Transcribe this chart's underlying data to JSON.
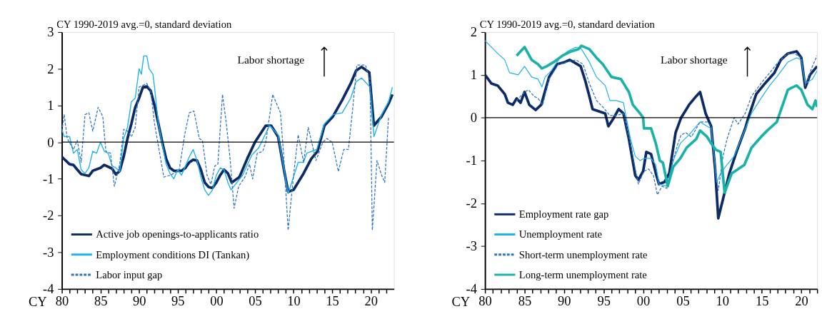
{
  "chart_data": [
    {
      "type": "line",
      "ylabel": "CY 1990-2019 avg.=0, standard deviation",
      "xlabel": "CY",
      "annotations": [
        "Labor shortage"
      ],
      "xlim": [
        1980,
        2023
      ],
      "ylim": [
        -4,
        3
      ],
      "yticks": [
        -4,
        -3,
        -2,
        -1,
        0,
        1,
        2,
        3
      ],
      "xticks": [
        {
          "value": 1980,
          "label": "80"
        },
        {
          "value": 1981,
          "label": null
        },
        {
          "value": 1982,
          "label": null
        },
        {
          "value": 1983,
          "label": null
        },
        {
          "value": 1984,
          "label": null
        },
        {
          "value": 1985,
          "label": "85"
        },
        {
          "value": 1986,
          "label": null
        },
        {
          "value": 1987,
          "label": null
        },
        {
          "value": 1988,
          "label": null
        },
        {
          "value": 1989,
          "label": null
        },
        {
          "value": 1990,
          "label": "90"
        },
        {
          "value": 1991,
          "label": null
        },
        {
          "value": 1992,
          "label": null
        },
        {
          "value": 1993,
          "label": null
        },
        {
          "value": 1994,
          "label": null
        },
        {
          "value": 1995,
          "label": "95"
        },
        {
          "value": 1996,
          "label": null
        },
        {
          "value": 1997,
          "label": null
        },
        {
          "value": 1998,
          "label": null
        },
        {
          "value": 1999,
          "label": null
        },
        {
          "value": 2000,
          "label": "00"
        },
        {
          "value": 2001,
          "label": null
        },
        {
          "value": 2002,
          "label": null
        },
        {
          "value": 2003,
          "label": null
        },
        {
          "value": 2004,
          "label": null
        },
        {
          "value": 2005,
          "label": "05"
        },
        {
          "value": 2006,
          "label": null
        },
        {
          "value": 2007,
          "label": null
        },
        {
          "value": 2008,
          "label": null
        },
        {
          "value": 2009,
          "label": null
        },
        {
          "value": 2010,
          "label": "10"
        },
        {
          "value": 2011,
          "label": null
        },
        {
          "value": 2012,
          "label": null
        },
        {
          "value": 2013,
          "label": null
        },
        {
          "value": 2014,
          "label": null
        },
        {
          "value": 2015,
          "label": "15"
        },
        {
          "value": 2016,
          "label": null
        },
        {
          "value": 2017,
          "label": null
        },
        {
          "value": 2018,
          "label": null
        },
        {
          "value": 2019,
          "label": null
        },
        {
          "value": 2020,
          "label": "20"
        },
        {
          "value": 2021,
          "label": null
        },
        {
          "value": 2022,
          "label": null
        }
      ],
      "grid": false,
      "legend": "bottom left",
      "marker": "none",
      "ref_lines": [
        {
          "axis": "y",
          "value": 0,
          "label": null,
          "color": "#000000"
        }
      ],
      "series": [
        {
          "name": "Active job openings-to-applicants ratio",
          "color": "#0b2a66",
          "line_style": "solid",
          "x": [
            1980,
            1981,
            1981.5,
            1982,
            1982.5,
            1983.5,
            1984,
            1985,
            1985.5,
            1986.5,
            1987,
            1987.5,
            1988,
            1988.5,
            1989,
            1989.5,
            1990,
            1990.5,
            1991,
            1991.5,
            1992,
            1992.5,
            1993,
            1993.5,
            1994,
            1994.5,
            1995.5,
            1996,
            1996.5,
            1997,
            1997.5,
            1998,
            1998.5,
            1999,
            1999.5,
            2000,
            2000.5,
            2001,
            2001.5,
            2002,
            2003,
            2004,
            2005,
            2006.4,
            2007.1,
            2008,
            2008.8,
            2009.3,
            2010,
            2011.3,
            2012.3,
            2013.1,
            2014,
            2015.1,
            2016.3,
            2017.4,
            2018.1,
            2018.8,
            2019.8,
            2020.4,
            2021.4,
            2022.3,
            2022.8
          ],
          "values": [
            -0.4,
            -0.6,
            -0.62,
            -0.75,
            -0.87,
            -0.92,
            -0.78,
            -0.7,
            -0.62,
            -0.72,
            -0.88,
            -0.78,
            -0.4,
            0.1,
            0.5,
            0.95,
            1.2,
            1.5,
            1.52,
            1.4,
            1.0,
            0.5,
            0.0,
            -0.45,
            -0.7,
            -0.78,
            -0.78,
            -0.7,
            -0.55,
            -0.48,
            -0.5,
            -0.75,
            -1.1,
            -1.22,
            -1.25,
            -1.1,
            -0.9,
            -0.75,
            -0.85,
            -1.1,
            -0.95,
            -0.45,
            0.0,
            0.45,
            0.45,
            0.15,
            -0.8,
            -1.35,
            -1.3,
            -0.85,
            -0.45,
            -0.25,
            0.45,
            0.7,
            1.15,
            1.6,
            1.95,
            2.05,
            1.9,
            0.45,
            0.7,
            1.05,
            1.3
          ]
        },
        {
          "name": "Employment conditions DI (Tankan)",
          "color": "#1ab2ef",
          "line_style": "solid",
          "x": [
            1980,
            1980.3,
            1981,
            1981.5,
            1982,
            1982.5,
            1983,
            1983.5,
            1984,
            1984.5,
            1985,
            1985.5,
            1986,
            1986.5,
            1987,
            1987.5,
            1988,
            1988.5,
            1989,
            1989.5,
            1990,
            1990.3,
            1990.6,
            1991,
            1991.3,
            1991.8,
            1992,
            1992.5,
            1993,
            1993.5,
            1994,
            1994.5,
            1995,
            1995.5,
            1996,
            1996.5,
            1997,
            1997.5,
            1998,
            1998.5,
            1999,
            1999.5,
            2000,
            2000.5,
            2001,
            2001.5,
            2001.9,
            2003.4,
            2004.6,
            2005.5,
            2006.9,
            2008,
            2009.3,
            2010.6,
            2011.3,
            2011.7,
            2013,
            2014,
            2015.1,
            2016.3,
            2017.4,
            2018.1,
            2018.8,
            2019.9,
            2020.4,
            2021.4,
            2022.3,
            2022.8
          ],
          "values": [
            0.35,
            0.15,
            0.15,
            -0.3,
            -0.2,
            -0.75,
            -0.85,
            -0.7,
            -0.25,
            -0.3,
            0.0,
            -0.25,
            -0.3,
            -0.65,
            -0.7,
            -0.8,
            0.1,
            0.4,
            1.1,
            1.2,
            2.0,
            1.85,
            2.35,
            2.35,
            2.0,
            1.85,
            1.5,
            0.5,
            -0.05,
            -0.6,
            -0.85,
            -1.0,
            -0.75,
            -0.9,
            -0.65,
            -0.4,
            -0.2,
            -0.5,
            -0.95,
            -1.3,
            -1.45,
            -1.3,
            -0.9,
            -0.7,
            -0.75,
            -1.1,
            -1.3,
            -0.9,
            -0.35,
            -0.15,
            0.45,
            0.2,
            -1.4,
            -0.55,
            -0.55,
            -0.3,
            -0.2,
            0.5,
            0.75,
            0.8,
            1.2,
            1.65,
            1.75,
            1.5,
            0.15,
            0.75,
            1.1,
            1.5
          ]
        },
        {
          "name": "Labor input gap",
          "color": "#2f75c6",
          "line_style": "dashed",
          "x": [
            1980,
            1980.3,
            1980.7,
            1981.5,
            1982,
            1982.5,
            1983,
            1983.5,
            1984,
            1984.7,
            1985.3,
            1985.7,
            1986.3,
            1986.8,
            1987.5,
            1988,
            1988.5,
            1989,
            1989.5,
            1990,
            1990.5,
            1991,
            1991.5,
            1992,
            1992.5,
            1993.2,
            1994.1,
            1995.2,
            1995.9,
            1996.5,
            1997.1,
            1997.8,
            1998.2,
            1998.8,
            1999.3,
            1999.8,
            2000.2,
            2000.8,
            2001.3,
            2001.8,
            2002.3,
            2002.9,
            2003.7,
            2004.3,
            2004.7,
            2005.3,
            2006,
            2006.4,
            2007.3,
            2007.7,
            2008.3,
            2008.7,
            2009.3,
            2010,
            2010.6,
            2011.3,
            2011.9,
            2012.9,
            2013.8,
            2014.3,
            2015,
            2015.8,
            2016.5,
            2017.1,
            2017.6,
            2018.2,
            2019.3,
            2019.9,
            2020.2,
            2020.8,
            2021.4,
            2021.8,
            2022.3
          ],
          "values": [
            0.3,
            0.75,
            0.1,
            -0.2,
            0.05,
            -0.55,
            0.75,
            0.8,
            0.3,
            0.95,
            0.7,
            -0.25,
            -0.3,
            -1.2,
            -0.6,
            0.35,
            0.3,
            0.15,
            0.4,
            1.5,
            1.55,
            1.6,
            1.4,
            0.5,
            -0.1,
            -0.95,
            -0.9,
            -0.75,
            0.2,
            0.8,
            0.85,
            0.1,
            0.05,
            -0.9,
            -1.15,
            -0.65,
            -0.6,
            1.3,
            0.5,
            -0.5,
            -1.8,
            -1.2,
            -0.95,
            -0.6,
            -1.0,
            -0.3,
            -0.25,
            0.0,
            1.3,
            1.1,
            0.8,
            -0.3,
            -2.4,
            -0.9,
            0.2,
            -0.55,
            0.4,
            -0.5,
            0.0,
            0.1,
            0.0,
            -0.8,
            -0.2,
            -0.2,
            0.8,
            2.1,
            2.1,
            1.7,
            -2.4,
            -0.5,
            -0.9,
            -1.1,
            0.7
          ]
        }
      ]
    },
    {
      "type": "line",
      "ylabel": "CY 1990-2019 avg.=0, standard deviation",
      "xlabel": "CY",
      "annotations": [
        "Labor shortage"
      ],
      "xlim": [
        1980,
        2022
      ],
      "ylim": [
        -4,
        2
      ],
      "yticks": [
        -4,
        -3,
        -2,
        -1,
        0,
        1,
        2
      ],
      "xticks": [
        {
          "value": 1980,
          "label": "80"
        },
        {
          "value": 1981,
          "label": null
        },
        {
          "value": 1982,
          "label": null
        },
        {
          "value": 1983,
          "label": null
        },
        {
          "value": 1984,
          "label": null
        },
        {
          "value": 1985,
          "label": "85"
        },
        {
          "value": 1986,
          "label": null
        },
        {
          "value": 1987,
          "label": null
        },
        {
          "value": 1988,
          "label": null
        },
        {
          "value": 1989,
          "label": null
        },
        {
          "value": 1990,
          "label": "90"
        },
        {
          "value": 1991,
          "label": null
        },
        {
          "value": 1992,
          "label": null
        },
        {
          "value": 1993,
          "label": null
        },
        {
          "value": 1994,
          "label": null
        },
        {
          "value": 1995,
          "label": "95"
        },
        {
          "value": 1996,
          "label": null
        },
        {
          "value": 1997,
          "label": null
        },
        {
          "value": 1998,
          "label": null
        },
        {
          "value": 1999,
          "label": null
        },
        {
          "value": 2000,
          "label": "00"
        },
        {
          "value": 2001,
          "label": null
        },
        {
          "value": 2002,
          "label": null
        },
        {
          "value": 2003,
          "label": null
        },
        {
          "value": 2004,
          "label": null
        },
        {
          "value": 2005,
          "label": "05"
        },
        {
          "value": 2006,
          "label": null
        },
        {
          "value": 2007,
          "label": null
        },
        {
          "value": 2008,
          "label": null
        },
        {
          "value": 2009,
          "label": null
        },
        {
          "value": 2010,
          "label": "10"
        },
        {
          "value": 2011,
          "label": null
        },
        {
          "value": 2012,
          "label": null
        },
        {
          "value": 2013,
          "label": null
        },
        {
          "value": 2014,
          "label": null
        },
        {
          "value": 2015,
          "label": "15"
        },
        {
          "value": 2016,
          "label": null
        },
        {
          "value": 2017,
          "label": null
        },
        {
          "value": 2018,
          "label": null
        },
        {
          "value": 2019,
          "label": null
        },
        {
          "value": 2020,
          "label": "20"
        },
        {
          "value": 2021,
          "label": null
        },
        {
          "value": 2022,
          "label": null
        }
      ],
      "grid": false,
      "legend": "bottom left",
      "marker": "none",
      "ref_lines": [
        {
          "axis": "y",
          "value": 0,
          "label": null,
          "color": "#000000"
        }
      ],
      "series": [
        {
          "name": "Employment rate gap",
          "color": "#0b2a66",
          "line_style": "solid",
          "x": [
            1980,
            1980.8,
            1981.6,
            1982.5,
            1982.9,
            1983.5,
            1984,
            1984.5,
            1985,
            1985.6,
            1986.4,
            1987.1,
            1988.1,
            1989.1,
            1990.1,
            1990.7,
            1991.2,
            1992.1,
            1992.7,
            1993.2,
            1993.6,
            1994.4,
            1995.2,
            1995.6,
            1996.3,
            1996.9,
            1997.5,
            1998.2,
            1999,
            1999.4,
            2000,
            2000.4,
            2001,
            2001.6,
            2002,
            2002.7,
            2003.3,
            2004.1,
            2004.8,
            2005.8,
            2006.7,
            2007.2,
            2007.9,
            2008.6,
            2009.1,
            2009.5,
            2010.1,
            2010.9,
            2011.8,
            2012.9,
            2013.3,
            2014.3,
            2015.4,
            2016.6,
            2017.4,
            2018.3,
            2019.4,
            2020,
            2020.5,
            2021.1,
            2022
          ],
          "values": [
            1.0,
            0.8,
            0.75,
            0.55,
            0.35,
            0.3,
            0.45,
            0.35,
            0.6,
            0.3,
            0.18,
            0.3,
            0.95,
            1.25,
            1.3,
            1.35,
            1.3,
            1.2,
            0.85,
            0.5,
            0.2,
            0.15,
            0.1,
            -0.2,
            0.0,
            0.2,
            0.1,
            -0.5,
            -1.35,
            -1.45,
            -1.25,
            -0.8,
            -0.85,
            -1.3,
            -1.55,
            -1.5,
            -1.3,
            -0.35,
            0.0,
            0.3,
            0.5,
            0.6,
            0.1,
            -0.2,
            -1.2,
            -2.35,
            -1.9,
            -1.3,
            -0.8,
            -0.25,
            0.0,
            0.55,
            0.8,
            1.05,
            1.35,
            1.5,
            1.55,
            1.4,
            0.7,
            1.0,
            1.2
          ]
        },
        {
          "name": "Unemployment rate",
          "color": "#1ab2ef",
          "line_style": "solid",
          "x": [
            1980,
            1980.8,
            1981.6,
            1982.5,
            1983.1,
            1984.2,
            1985,
            1985.9,
            1986.7,
            1987.2,
            1987.6,
            1988.4,
            1989.3,
            1990.4,
            1991.5,
            1992.2,
            1993.2,
            1994.1,
            1995.2,
            1995.8,
            1996.6,
            1997.5,
            1998.4,
            1999,
            1999.6,
            2000.1,
            2001,
            2001.6,
            2002,
            2003,
            2003.8,
            2004.7,
            2005.8,
            2007.2,
            2008.1,
            2008.6,
            2009.3,
            2009.8,
            2010.6,
            2011.5,
            2012.6,
            2013.7,
            2014.9,
            2016,
            2017.1,
            2018.3,
            2019.4,
            2020,
            2020.5,
            2021.4,
            2022
          ],
          "values": [
            1.8,
            1.65,
            1.5,
            1.35,
            1.05,
            1.0,
            1.2,
            0.95,
            0.9,
            0.72,
            0.95,
            1.1,
            1.35,
            1.55,
            1.65,
            1.6,
            1.3,
            0.95,
            0.75,
            0.4,
            0.4,
            0.35,
            -0.5,
            -0.9,
            -1.0,
            -0.95,
            -0.95,
            -1.1,
            -1.55,
            -1.6,
            -1.0,
            -0.6,
            -0.4,
            -0.1,
            -0.2,
            -0.25,
            -1.5,
            -1.3,
            -1.1,
            -0.9,
            -0.4,
            0.1,
            0.45,
            0.75,
            1.0,
            1.3,
            1.4,
            1.35,
            0.8,
            0.9,
            1.1
          ]
        },
        {
          "name": "Short-term unemployment rate",
          "color": "#2f75c6",
          "line_style": "dashed",
          "x": [
            1984,
            1985,
            1985.5,
            1986.2,
            1986.7,
            1987.3,
            1988.1,
            1989.3,
            1990.4,
            1991.5,
            1992.4,
            1993.2,
            1994.1,
            1994.9,
            1995.8,
            1996.6,
            1997.5,
            1998.4,
            1999,
            1999.4,
            2000.1,
            2000.7,
            2001.3,
            2001.8,
            2002.4,
            2003,
            2003.5,
            2004.4,
            2004.8,
            2005.4,
            2006.1,
            2007.2,
            2008.1,
            2008.6,
            2009.2,
            2009.5,
            2010.1,
            2010.6,
            2011.5,
            2012,
            2012.9,
            2013.7,
            2014.9,
            2016,
            2017.1,
            2018.3,
            2019.1,
            2020,
            2020.5,
            2021.4,
            2022
          ],
          "values": [
            0.4,
            0.6,
            0.65,
            0.5,
            0.45,
            0.3,
            0.9,
            1.25,
            1.3,
            1.35,
            1.25,
            0.8,
            0.4,
            0.25,
            0.05,
            0.05,
            0.1,
            -0.6,
            -1.2,
            -1.55,
            -1.25,
            -1.2,
            -1.35,
            -1.8,
            -1.6,
            -1.65,
            -1.2,
            -0.6,
            -0.4,
            -0.35,
            -0.45,
            -0.1,
            -0.1,
            -0.2,
            -1.3,
            -1.7,
            -0.9,
            -0.5,
            0.0,
            -0.15,
            0.1,
            0.5,
            0.8,
            1.05,
            1.3,
            1.5,
            1.5,
            1.4,
            0.75,
            1.2,
            1.45
          ]
        },
        {
          "name": "Long-term unemployment rate",
          "color": "#19b2a7",
          "line_style": "solid",
          "x": [
            1984,
            1985,
            1985.9,
            1986.7,
            1987.2,
            1987.8,
            1988.7,
            1989.8,
            1990.9,
            1991.8,
            1992.2,
            1993.2,
            1994.1,
            1994.9,
            1996,
            1997.2,
            1998.2,
            1998.7,
            1999.6,
            2000,
            2000.1,
            2001,
            2001.6,
            2002.1,
            2002.5,
            2003.1,
            2003.8,
            2004.7,
            2005.5,
            2006.7,
            2007.2,
            2008.1,
            2008.6,
            2009.2,
            2009.8,
            2010.3,
            2011.2,
            2012,
            2012.8,
            2013.7,
            2014.9,
            2015.7,
            2016.9,
            2018.3,
            2018.8,
            2019.4,
            2020,
            2020.8,
            2021.4,
            2021.8,
            2022
          ],
          "values": [
            1.45,
            1.65,
            1.35,
            1.25,
            1.15,
            1.2,
            1.3,
            1.45,
            1.55,
            1.6,
            1.68,
            1.6,
            1.4,
            1.25,
            0.95,
            0.9,
            0.6,
            0.3,
            0.1,
            0.0,
            -0.25,
            -0.25,
            -0.6,
            -1.0,
            -1.05,
            -1.6,
            -1.15,
            -0.95,
            -0.7,
            -0.5,
            -0.3,
            -0.45,
            -0.6,
            -0.75,
            -0.8,
            -1.75,
            -1.3,
            -1.2,
            -1.1,
            -0.7,
            -0.45,
            -0.3,
            -0.1,
            0.65,
            0.7,
            0.75,
            0.65,
            0.3,
            0.2,
            0.4,
            0.25
          ]
        }
      ]
    }
  ]
}
